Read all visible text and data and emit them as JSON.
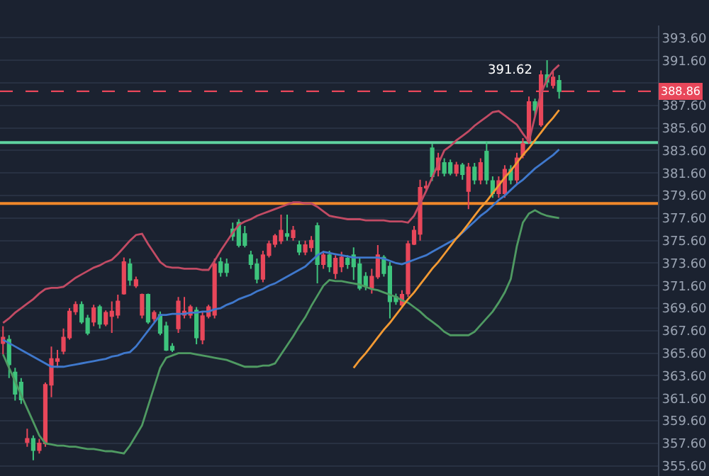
{
  "chart_data": {
    "type": "candlestick",
    "categories": [
      null,
      null,
      null,
      null,
      null,
      null,
      null,
      null,
      null,
      null,
      null,
      null,
      null,
      null,
      null,
      null,
      null,
      null,
      null,
      null,
      null,
      null,
      null,
      null,
      null,
      null,
      null,
      null,
      null,
      null,
      null,
      null,
      null,
      null,
      null,
      null,
      null,
      null,
      null,
      null,
      null,
      null,
      null,
      null,
      null,
      null,
      null,
      null,
      null,
      null,
      null,
      null,
      null,
      null,
      null,
      null,
      null,
      null,
      null,
      null,
      null,
      null,
      null,
      null,
      null,
      null,
      null,
      null,
      null,
      null,
      null,
      null,
      null,
      null,
      null,
      null,
      null,
      null,
      null,
      null,
      null,
      null,
      null,
      null,
      null,
      null,
      null,
      null,
      null,
      null,
      null,
      null,
      null
    ],
    "ohlc": [
      [
        366.5,
        368.0,
        365.5,
        367.0
      ],
      [
        366.8,
        367.2,
        363.4,
        364.6
      ],
      [
        363.9,
        364.3,
        361.4,
        362.0
      ],
      [
        363.0,
        363.4,
        361.1,
        361.5
      ],
      [
        357.7,
        358.9,
        357.3,
        358.0
      ],
      [
        358.0,
        358.3,
        356.1,
        357.0
      ],
      [
        357.0,
        358.0,
        356.7,
        357.6
      ],
      [
        357.6,
        363.0,
        357.3,
        362.8
      ],
      [
        362.8,
        366.2,
        361.7,
        365.1
      ],
      [
        364.9,
        365.9,
        364.3,
        365.1
      ],
      [
        365.8,
        367.8,
        365.5,
        367.0
      ],
      [
        367.0,
        369.6,
        366.8,
        369.3
      ],
      [
        369.3,
        370.2,
        369.0,
        369.9
      ],
      [
        369.9,
        370.2,
        368.2,
        368.4
      ],
      [
        368.7,
        369.0,
        367.2,
        367.4
      ],
      [
        368.4,
        369.9,
        368.0,
        369.6
      ],
      [
        369.7,
        369.9,
        367.8,
        368.2
      ],
      [
        368.2,
        369.4,
        368.0,
        369.2
      ],
      [
        368.9,
        370.2,
        367.4,
        369.3
      ],
      [
        369.0,
        370.8,
        368.7,
        370.2
      ],
      [
        370.9,
        374.1,
        370.8,
        373.7
      ],
      [
        373.5,
        374.0,
        371.6,
        372.1
      ],
      [
        371.6,
        372.4,
        371.4,
        372.1
      ],
      [
        369.0,
        370.9,
        368.7,
        370.8
      ],
      [
        370.8,
        370.9,
        368.2,
        368.4
      ],
      [
        368.7,
        369.4,
        368.4,
        369.2
      ],
      [
        369.0,
        369.3,
        367.2,
        367.4
      ],
      [
        368.0,
        368.4,
        365.8,
        365.9
      ],
      [
        366.2,
        366.5,
        365.7,
        365.9
      ],
      [
        367.8,
        370.6,
        367.4,
        370.2
      ],
      [
        369.0,
        370.6,
        368.7,
        369.3
      ],
      [
        369.0,
        369.9,
        368.7,
        369.7
      ],
      [
        369.4,
        369.7,
        366.4,
        367.0
      ],
      [
        366.8,
        369.3,
        366.4,
        368.9
      ],
      [
        368.9,
        369.9,
        368.7,
        369.7
      ],
      [
        369.0,
        374.0,
        368.7,
        373.5
      ],
      [
        373.7,
        374.1,
        372.4,
        372.8
      ],
      [
        373.5,
        374.0,
        372.4,
        372.8
      ],
      [
        376.6,
        377.2,
        375.6,
        376.0
      ],
      [
        377.2,
        377.5,
        375.0,
        375.2
      ],
      [
        376.2,
        376.9,
        375.0,
        375.2
      ],
      [
        374.3,
        374.7,
        373.1,
        373.5
      ],
      [
        373.5,
        374.0,
        371.8,
        372.2
      ],
      [
        372.2,
        374.7,
        371.9,
        374.3
      ],
      [
        374.3,
        375.6,
        374.1,
        375.3
      ],
      [
        375.3,
        376.2,
        375.0,
        376.0
      ],
      [
        375.6,
        377.9,
        375.3,
        376.5
      ],
      [
        376.2,
        377.9,
        375.6,
        376.0
      ],
      [
        375.9,
        376.9,
        375.6,
        376.5
      ],
      [
        375.2,
        375.6,
        374.3,
        374.6
      ],
      [
        374.6,
        375.6,
        374.3,
        375.2
      ],
      [
        375.0,
        376.0,
        374.6,
        375.6
      ],
      [
        376.9,
        377.2,
        371.8,
        373.5
      ],
      [
        373.5,
        374.7,
        373.1,
        374.3
      ],
      [
        374.3,
        374.7,
        372.8,
        373.3
      ],
      [
        372.7,
        374.3,
        372.2,
        374.0
      ],
      [
        373.3,
        374.6,
        372.8,
        374.1
      ],
      [
        374.0,
        374.3,
        373.1,
        373.5
      ],
      [
        374.3,
        375.0,
        372.1,
        373.3
      ],
      [
        373.5,
        374.0,
        371.2,
        371.4
      ],
      [
        372.4,
        372.8,
        371.2,
        371.6
      ],
      [
        371.4,
        373.1,
        370.9,
        372.4
      ],
      [
        372.4,
        375.2,
        372.2,
        374.3
      ],
      [
        374.1,
        374.3,
        372.4,
        372.7
      ],
      [
        373.3,
        373.7,
        368.7,
        370.2
      ],
      [
        370.6,
        370.9,
        369.9,
        370.2
      ],
      [
        369.9,
        371.2,
        369.7,
        370.8
      ],
      [
        370.9,
        375.6,
        370.6,
        375.3
      ],
      [
        375.3,
        376.9,
        375.2,
        376.5
      ],
      [
        376.2,
        381.0,
        375.6,
        380.3
      ],
      [
        380.3,
        380.9,
        380.0,
        380.4
      ],
      [
        383.8,
        384.2,
        380.9,
        381.3
      ],
      [
        381.9,
        383.4,
        381.3,
        382.9
      ],
      [
        382.5,
        382.9,
        381.3,
        381.6
      ],
      [
        382.5,
        382.8,
        381.4,
        381.6
      ],
      [
        381.6,
        382.6,
        381.3,
        382.3
      ],
      [
        382.3,
        382.5,
        381.0,
        381.5
      ],
      [
        380.0,
        382.5,
        378.4,
        382.1
      ],
      [
        382.1,
        382.5,
        380.6,
        381.0
      ],
      [
        381.0,
        382.9,
        380.6,
        382.5
      ],
      [
        383.5,
        384.4,
        380.6,
        381.0
      ],
      [
        380.9,
        381.3,
        379.4,
        379.8
      ],
      [
        379.8,
        381.3,
        379.4,
        380.9
      ],
      [
        379.8,
        382.3,
        379.4,
        381.9
      ],
      [
        381.9,
        382.3,
        380.6,
        381.0
      ],
      [
        381.0,
        383.4,
        380.6,
        382.9
      ],
      [
        383.2,
        384.7,
        382.9,
        384.2
      ],
      [
        384.4,
        388.4,
        384.2,
        387.9
      ],
      [
        387.9,
        388.2,
        386.7,
        387.2
      ],
      [
        385.9,
        390.7,
        385.7,
        390.3
      ],
      [
        390.3,
        391.62,
        389.2,
        389.7
      ],
      [
        389.4,
        390.7,
        389.1,
        390.1
      ],
      [
        389.8,
        390.3,
        388.2,
        388.86
      ]
    ],
    "colors": [
      "#e8475a",
      "#3ec47d",
      "#3ec47d",
      "#3ec47d",
      "#e8475a",
      "#3ec47d",
      "#e8475a",
      "#e8475a",
      "#e8475a",
      "#e8475a",
      "#e8475a",
      "#e8475a",
      "#e8475a",
      "#3ec47d",
      "#3ec47d",
      "#e8475a",
      "#3ec47d",
      "#e8475a",
      "#e8475a",
      "#e8475a",
      "#e8475a",
      "#3ec47d",
      "#e8475a",
      "#e8475a",
      "#3ec47d",
      "#e8475a",
      "#3ec47d",
      "#3ec47d",
      "#3ec47d",
      "#e8475a",
      "#e8475a",
      "#e8475a",
      "#3ec47d",
      "#e8475a",
      "#e8475a",
      "#e8475a",
      "#3ec47d",
      "#3ec47d",
      "#3ec47d",
      "#3ec47d",
      "#3ec47d",
      "#3ec47d",
      "#3ec47d",
      "#e8475a",
      "#e8475a",
      "#e8475a",
      "#e8475a",
      "#3ec47d",
      "#e8475a",
      "#3ec47d",
      "#e8475a",
      "#e8475a",
      "#3ec47d",
      "#e8475a",
      "#3ec47d",
      "#e8475a",
      "#e8475a",
      "#3ec47d",
      "#3ec47d",
      "#3ec47d",
      "#3ec47d",
      "#e8475a",
      "#e8475a",
      "#3ec47d",
      "#3ec47d",
      "#3ec47d",
      "#e8475a",
      "#e8475a",
      "#e8475a",
      "#e8475a",
      "#e8475a",
      "#3ec47d",
      "#e8475a",
      "#3ec47d",
      "#3ec47d",
      "#e8475a",
      "#3ec47d",
      "#e8475a",
      "#3ec47d",
      "#e8475a",
      "#3ec47d",
      "#3ec47d",
      "#e8475a",
      "#e8475a",
      "#3ec47d",
      "#e8475a",
      "#e8475a",
      "#e8475a",
      "#3ec47d",
      "#e8475a",
      "#3ec47d",
      "#e8475a",
      "#3ec47d"
    ],
    "series": [
      {
        "type": "line",
        "color": "#c24b64",
        "values": [
          368.3,
          368.7,
          369.2,
          369.6,
          370.0,
          370.4,
          370.9,
          371.3,
          371.4,
          371.4,
          371.5,
          371.9,
          372.3,
          372.6,
          372.9,
          373.2,
          373.4,
          373.7,
          373.9,
          374.4,
          375.0,
          375.6,
          376.1,
          376.2,
          375.3,
          374.5,
          373.7,
          373.3,
          373.2,
          373.2,
          373.1,
          373.1,
          373.1,
          373.0,
          373.0,
          373.8,
          374.7,
          375.5,
          376.3,
          377.0,
          377.3,
          377.5,
          377.8,
          378.0,
          378.2,
          378.4,
          378.6,
          378.8,
          379.0,
          379.0,
          378.9,
          378.9,
          378.6,
          378.2,
          377.8,
          377.7,
          377.6,
          377.5,
          377.5,
          377.5,
          377.4,
          377.4,
          377.4,
          377.4,
          377.3,
          377.3,
          377.3,
          377.2,
          377.8,
          378.9,
          380.0,
          381.2,
          382.4,
          383.6,
          384.0,
          384.5,
          384.9,
          385.3,
          385.8,
          386.2,
          386.6,
          387.0,
          387.1,
          386.7,
          386.3,
          385.9,
          385.1,
          384.4,
          386.6,
          388.7,
          389.9,
          390.7,
          391.2
        ]
      },
      {
        "type": "line",
        "color": "#3f78cc",
        "values": [
          366.8,
          366.5,
          366.2,
          365.9,
          365.6,
          365.3,
          365.0,
          364.7,
          364.4,
          364.4,
          364.4,
          364.5,
          364.6,
          364.7,
          364.8,
          364.9,
          365.0,
          365.1,
          365.3,
          365.4,
          365.6,
          365.7,
          366.2,
          366.9,
          367.6,
          368.3,
          369.0,
          369.0,
          369.1,
          369.1,
          369.1,
          369.2,
          369.2,
          369.3,
          369.3,
          369.5,
          369.6,
          369.9,
          370.1,
          370.4,
          370.6,
          370.8,
          371.1,
          371.3,
          371.6,
          371.8,
          372.1,
          372.4,
          372.7,
          373.0,
          373.3,
          373.8,
          374.3,
          374.6,
          374.5,
          374.4,
          374.3,
          374.2,
          374.1,
          374.1,
          374.1,
          374.1,
          374.1,
          374.0,
          373.8,
          373.6,
          373.5,
          373.7,
          373.9,
          374.1,
          374.3,
          374.6,
          374.9,
          375.2,
          375.5,
          375.8,
          376.3,
          376.8,
          377.3,
          377.8,
          378.2,
          378.7,
          379.2,
          379.6,
          380.1,
          380.6,
          381.0,
          381.5,
          382.0,
          382.4,
          382.8,
          383.2,
          383.7
        ]
      },
      {
        "type": "line",
        "color": "#4f9a62",
        "values": [
          365.5,
          364.3,
          363.1,
          361.9,
          360.7,
          359.5,
          358.3,
          357.6,
          357.5,
          357.4,
          357.4,
          357.3,
          357.3,
          357.2,
          357.1,
          357.1,
          357.0,
          356.9,
          356.9,
          356.8,
          356.7,
          357.4,
          358.3,
          359.2,
          360.9,
          362.6,
          364.3,
          365.2,
          365.4,
          365.6,
          365.6,
          365.6,
          365.5,
          365.4,
          365.3,
          365.2,
          365.1,
          365.0,
          364.8,
          364.6,
          364.4,
          364.4,
          364.4,
          364.5,
          364.5,
          364.7,
          365.5,
          366.3,
          367.1,
          368.0,
          368.8,
          369.8,
          370.7,
          371.6,
          372.1,
          372.0,
          372.0,
          371.9,
          371.8,
          371.7,
          371.5,
          371.3,
          371.2,
          371.0,
          370.8,
          370.6,
          370.3,
          370.1,
          369.7,
          369.3,
          368.8,
          368.4,
          368.0,
          367.5,
          367.2,
          367.2,
          367.2,
          367.2,
          367.5,
          368.1,
          368.7,
          369.3,
          370.1,
          371.0,
          372.2,
          375.1,
          377.2,
          378.0,
          378.3,
          378.0,
          377.8,
          377.7,
          377.6
        ]
      },
      {
        "type": "line",
        "color": "#f39a33",
        "values": [
          null,
          null,
          null,
          null,
          null,
          null,
          null,
          null,
          null,
          null,
          null,
          null,
          null,
          null,
          null,
          null,
          null,
          null,
          null,
          null,
          null,
          null,
          null,
          null,
          null,
          null,
          null,
          null,
          null,
          null,
          null,
          null,
          null,
          null,
          null,
          null,
          null,
          null,
          null,
          null,
          null,
          null,
          null,
          null,
          null,
          null,
          null,
          null,
          null,
          null,
          null,
          null,
          null,
          null,
          null,
          null,
          null,
          null,
          364.3,
          365.0,
          365.6,
          366.3,
          367.0,
          367.7,
          368.3,
          369.0,
          369.7,
          370.4,
          371.0,
          371.7,
          372.4,
          373.1,
          373.7,
          374.4,
          375.1,
          375.8,
          376.4,
          377.1,
          377.8,
          378.5,
          379.1,
          379.8,
          380.5,
          381.2,
          381.8,
          382.5,
          383.2,
          383.8,
          384.5,
          385.2,
          385.9,
          386.5,
          387.2
        ]
      }
    ],
    "ref_lines": [
      {
        "axis": "y",
        "value": 388.86,
        "label": "388.86",
        "color": "#e8475a",
        "line_style": "dashed"
      },
      {
        "axis": "y",
        "value": 384.3,
        "color": "#5fd3a0",
        "line_style": "solid"
      },
      {
        "axis": "y",
        "value": 378.9,
        "color": "#f0882a",
        "line_style": "solid"
      }
    ],
    "annotations": [
      "391.62"
    ],
    "ylim": [
      354.7,
      394.7
    ],
    "yticks": [
      {
        "value": 355.6,
        "label": "355.60"
      },
      {
        "value": 357.6,
        "label": "357.60"
      },
      {
        "value": 359.6,
        "label": "359.60"
      },
      {
        "value": 361.6,
        "label": "361.60"
      },
      {
        "value": 363.6,
        "label": "363.60"
      },
      {
        "value": 365.6,
        "label": "365.60"
      },
      {
        "value": 367.6,
        "label": "367.60"
      },
      {
        "value": 369.6,
        "label": "369.60"
      },
      {
        "value": 371.6,
        "label": "371.60"
      },
      {
        "value": 373.6,
        "label": "373.60"
      },
      {
        "value": 375.6,
        "label": "375.60"
      },
      {
        "value": 377.6,
        "label": "377.60"
      },
      {
        "value": 379.6,
        "label": "379.60"
      },
      {
        "value": 381.6,
        "label": "381.60"
      },
      {
        "value": 383.6,
        "label": "383.60"
      },
      {
        "value": 385.6,
        "label": "385.60"
      },
      {
        "value": 387.6,
        "label": "387.60"
      },
      {
        "value": 389.6,
        "label": null
      },
      {
        "value": 391.6,
        "label": "391.60"
      },
      {
        "value": 393.6,
        "label": "393.60"
      }
    ],
    "tick_labels": "y",
    "grid": "y"
  }
}
